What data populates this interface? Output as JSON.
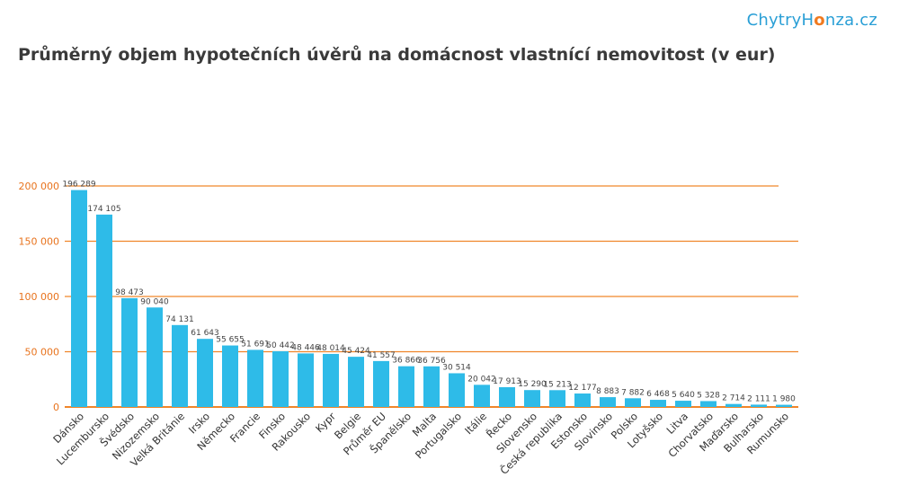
{
  "brand": {
    "part1": "ChytryH",
    "part2": "o",
    "part3": "nza.cz"
  },
  "colors": {
    "bar": "#2ebbe8",
    "grid": "#f0862a",
    "tick": "#e8731d",
    "brand_blue": "#2a9fd6",
    "brand_orange": "#f07a1f"
  },
  "chart_data": {
    "type": "bar",
    "title": "Průměrný objem hypotečních úvěrů na domácnost vlastnící nemovitost (v eur)",
    "xlabel": "",
    "ylabel": "",
    "ylim": [
      0,
      200000
    ],
    "yticks": [
      0,
      50000,
      100000,
      150000,
      200000
    ],
    "ytick_labels": [
      "0",
      "50 000",
      "100 000",
      "150 000",
      "200 000"
    ],
    "grid": true,
    "categories": [
      "Dánsko",
      "Lucembursko",
      "Švédsko",
      "Nizozemsko",
      "Velká Británie",
      "Irsko",
      "Německo",
      "Francie",
      "Finsko",
      "Rakousko",
      "Kypr",
      "Belgie",
      "Průměr EU",
      "Španělsko",
      "Malta",
      "Portugalsko",
      "Itálie",
      "Řecko",
      "Slovensko",
      "Česká republika",
      "Estonsko",
      "Slovinsko",
      "Polsko",
      "Lotyšsko",
      "Litva",
      "Chorvatsko",
      "Maďarsko",
      "Bulharsko",
      "Rumunsko"
    ],
    "values": [
      196289,
      174105,
      98473,
      90040,
      74131,
      61643,
      55655,
      51691,
      50442,
      48446,
      48014,
      45424,
      41557,
      36866,
      36756,
      30514,
      20042,
      17913,
      15290,
      15213,
      12177,
      8883,
      7882,
      6468,
      5640,
      5328,
      2714,
      2111,
      1980
    ],
    "value_labels": [
      "196 289",
      "174 105",
      "98 473",
      "90 040",
      "74 131",
      "61 643",
      "55 655",
      "51 691",
      "50 442",
      "48 446",
      "48 014",
      "45 424",
      "41 557",
      "36 866",
      "36 756",
      "30 514",
      "20 042",
      "17 913",
      "15 290",
      "15 213",
      "12 177",
      "8 883",
      "7 882",
      "6 468",
      "5 640",
      "5 328",
      "2 714",
      "2 111",
      "1 980"
    ]
  }
}
